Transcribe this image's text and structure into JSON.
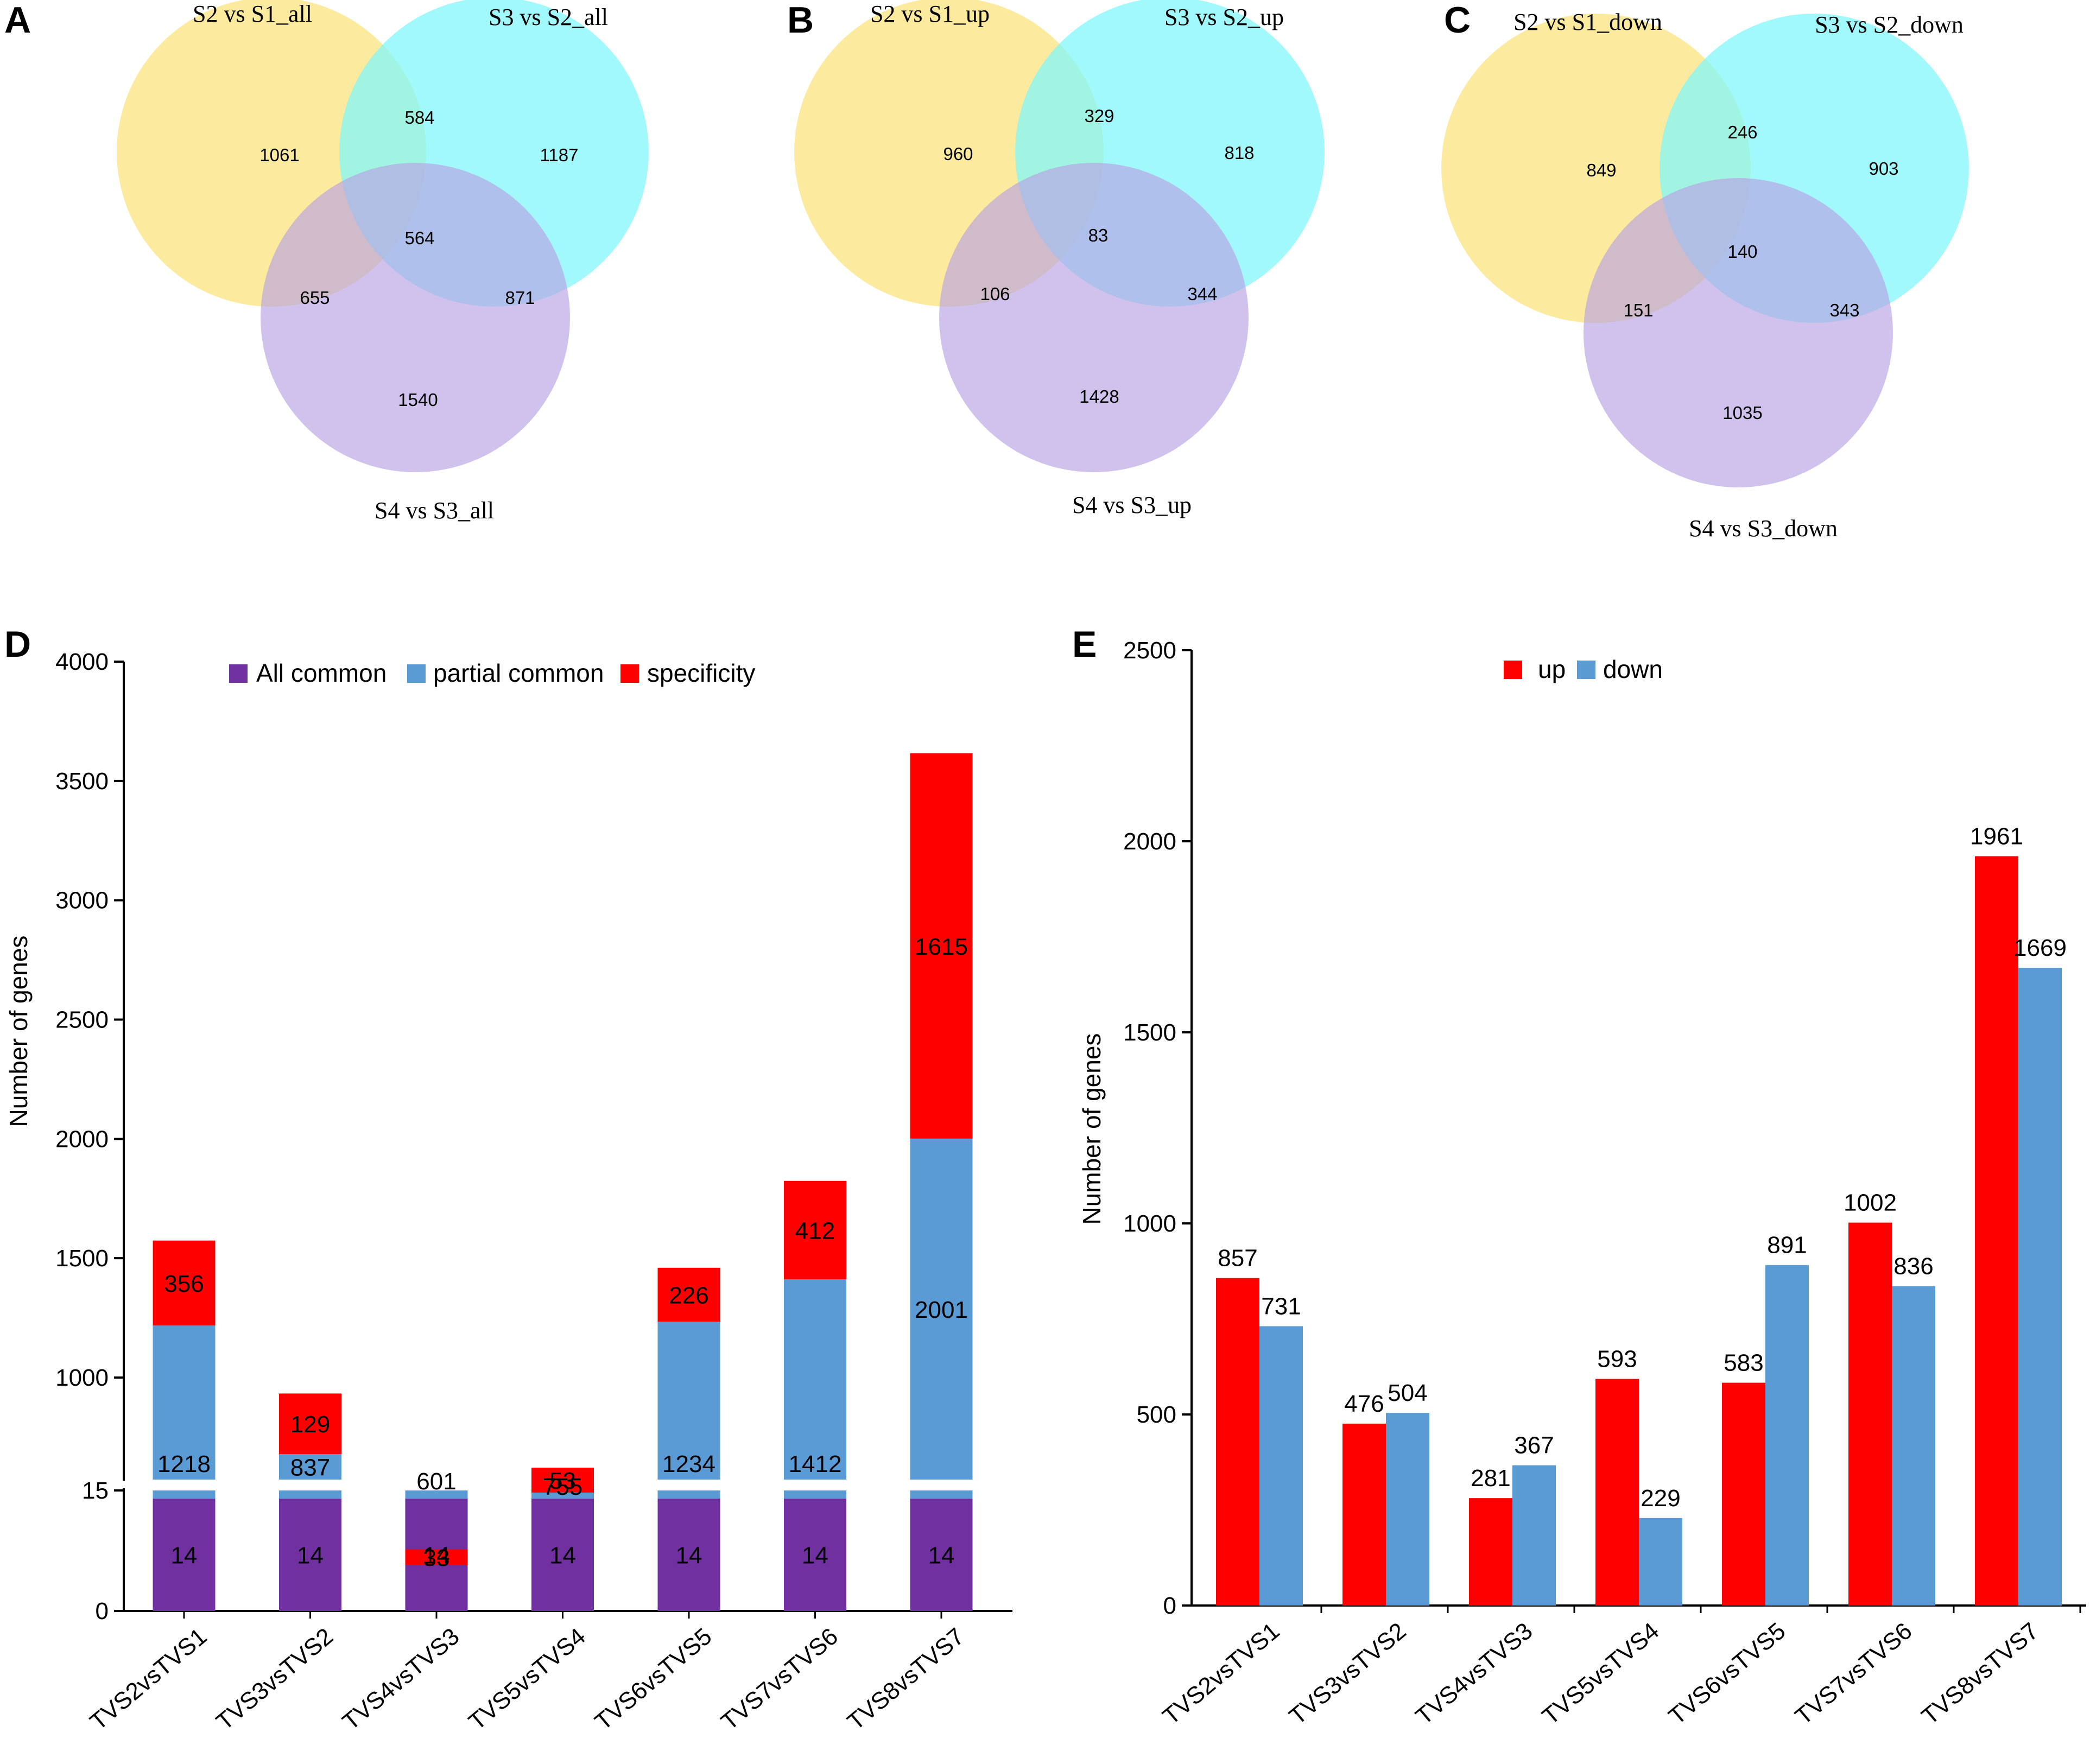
{
  "panels": {
    "A": "A",
    "B": "B",
    "C": "C",
    "D": "D",
    "E": "E"
  },
  "venn": [
    {
      "id": "A",
      "set_labels": [
        "S2 vs S1_all",
        "S3 vs S2_all",
        "S4 vs S3_all"
      ],
      "regions": {
        "only1": "1061",
        "only2": "1187",
        "only3": "1540",
        "r12": "584",
        "r13": "655",
        "r23": "871",
        "r123": "564"
      }
    },
    {
      "id": "B",
      "set_labels": [
        "S2 vs S1_up",
        "S3 vs S2_up",
        "S4 vs S3_up"
      ],
      "regions": {
        "only1": "960",
        "only2": "818",
        "only3": "1428",
        "r12": "329",
        "r13": "106",
        "r23": "344",
        "r123": "83"
      }
    },
    {
      "id": "C",
      "set_labels": [
        "S2 vs S1_down",
        "S3 vs S2_down",
        "S4 vs S3_down"
      ],
      "regions": {
        "only1": "849",
        "only2": "903",
        "only3": "1035",
        "r12": "246",
        "r13": "151",
        "r23": "343",
        "r123": "140"
      }
    }
  ],
  "colors": {
    "venn_yellow": "#fbe78a",
    "venn_cyan": "#7df6fb",
    "venn_purple": "#c6b0e6",
    "all_common": "#7030a0",
    "partial_common": "#5b9bd5",
    "specificity": "#ff0000",
    "up": "#ff0000",
    "down": "#5b9bd5"
  },
  "chart_data": [
    {
      "id": "D",
      "type": "bar",
      "stacked": true,
      "broken_axis": true,
      "ylabel": "Number of genes",
      "categories": [
        "TVS2vsTVS1",
        "TVS3vsTVS2",
        "TVS4vsTVS3",
        "TVS5vsTVS4",
        "TVS6vsTVS5",
        "TVS7vsTVS6",
        "TVS8vsTVS7"
      ],
      "series": [
        {
          "name": "All common",
          "values": [
            14,
            14,
            14,
            14,
            14,
            14,
            14
          ]
        },
        {
          "name": "partial common",
          "values": [
            1218,
            837,
            601,
            755,
            1234,
            1412,
            2001
          ]
        },
        {
          "name": "specificity",
          "values": [
            356,
            129,
            33,
            53,
            226,
            412,
            1615
          ]
        }
      ],
      "lower_ticks": [
        "0",
        "15"
      ],
      "upper_ticks": [
        "1000",
        "1500",
        "2000",
        "2500",
        "3000",
        "3500",
        "4000"
      ],
      "ylim": [
        0,
        4000
      ],
      "legend_position": "top"
    },
    {
      "id": "E",
      "type": "bar",
      "stacked": false,
      "ylabel": "Number of genes",
      "categories": [
        "TVS2vsTVS1",
        "TVS3vsTVS2",
        "TVS4vsTVS3",
        "TVS5vsTVS4",
        "TVS6vsTVS5",
        "TVS7vsTVS6",
        "TVS8vsTVS7"
      ],
      "series": [
        {
          "name": "up",
          "values": [
            857,
            476,
            281,
            593,
            583,
            1002,
            1961
          ]
        },
        {
          "name": "down",
          "values": [
            731,
            504,
            367,
            229,
            891,
            836,
            1669
          ]
        }
      ],
      "ticks": [
        "0",
        "500",
        "1000",
        "1500",
        "2000",
        "2500"
      ],
      "ylim": [
        0,
        2500
      ],
      "legend_position": "top"
    }
  ]
}
